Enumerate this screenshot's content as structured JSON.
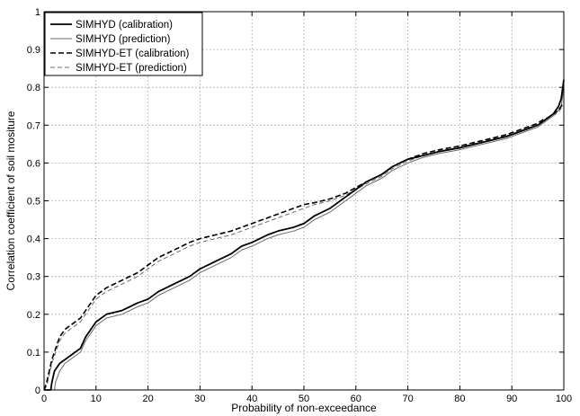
{
  "chart_data": {
    "type": "line",
    "title": "",
    "xlabel": "Probability of non-exceedance",
    "ylabel": "Correlation coefficient of soil mositure",
    "xlim": [
      0,
      100
    ],
    "ylim": [
      0,
      1
    ],
    "xticks": [
      0,
      10,
      20,
      30,
      40,
      50,
      60,
      70,
      80,
      90,
      100
    ],
    "yticks": [
      0,
      0.1,
      0.2,
      0.3,
      0.4,
      0.5,
      0.6,
      0.7,
      0.8,
      0.9,
      1
    ],
    "grid": true,
    "legend_position": "top-left",
    "series": [
      {
        "name": "SIMHYD (calibration)",
        "color": "#000000",
        "style": "solid-thick",
        "points": [
          [
            0,
            0
          ],
          [
            1.3,
            0
          ],
          [
            1.5,
            0.02
          ],
          [
            2,
            0.05
          ],
          [
            3,
            0.07
          ],
          [
            4,
            0.08
          ],
          [
            5,
            0.09
          ],
          [
            6,
            0.1
          ],
          [
            7,
            0.11
          ],
          [
            8,
            0.14
          ],
          [
            9,
            0.16
          ],
          [
            10,
            0.18
          ],
          [
            12,
            0.2
          ],
          [
            15,
            0.21
          ],
          [
            18,
            0.23
          ],
          [
            20,
            0.24
          ],
          [
            22,
            0.26
          ],
          [
            25,
            0.28
          ],
          [
            28,
            0.3
          ],
          [
            30,
            0.32
          ],
          [
            33,
            0.34
          ],
          [
            36,
            0.36
          ],
          [
            38,
            0.38
          ],
          [
            40,
            0.39
          ],
          [
            43,
            0.41
          ],
          [
            45,
            0.42
          ],
          [
            48,
            0.43
          ],
          [
            50,
            0.44
          ],
          [
            52,
            0.46
          ],
          [
            55,
            0.48
          ],
          [
            58,
            0.51
          ],
          [
            60,
            0.53
          ],
          [
            62,
            0.55
          ],
          [
            65,
            0.57
          ],
          [
            67,
            0.59
          ],
          [
            70,
            0.61
          ],
          [
            73,
            0.62
          ],
          [
            76,
            0.63
          ],
          [
            80,
            0.64
          ],
          [
            83,
            0.65
          ],
          [
            86,
            0.66
          ],
          [
            89,
            0.67
          ],
          [
            91,
            0.68
          ],
          [
            93,
            0.69
          ],
          [
            95,
            0.7
          ],
          [
            96,
            0.71
          ],
          [
            97,
            0.72
          ],
          [
            98,
            0.73
          ],
          [
            99,
            0.75
          ],
          [
            99.5,
            0.77
          ],
          [
            100,
            0.82
          ]
        ]
      },
      {
        "name": "SIMHYD (prediction)",
        "color": "#6a6a6a",
        "style": "solid-thin",
        "points": [
          [
            0,
            0
          ],
          [
            2,
            0
          ],
          [
            2.2,
            0.02
          ],
          [
            3,
            0.05
          ],
          [
            4,
            0.07
          ],
          [
            5,
            0.08
          ],
          [
            6,
            0.09
          ],
          [
            7,
            0.1
          ],
          [
            8,
            0.13
          ],
          [
            9,
            0.15
          ],
          [
            10,
            0.17
          ],
          [
            12,
            0.19
          ],
          [
            15,
            0.2
          ],
          [
            18,
            0.22
          ],
          [
            20,
            0.23
          ],
          [
            22,
            0.25
          ],
          [
            25,
            0.27
          ],
          [
            28,
            0.29
          ],
          [
            30,
            0.31
          ],
          [
            33,
            0.33
          ],
          [
            36,
            0.35
          ],
          [
            38,
            0.37
          ],
          [
            40,
            0.38
          ],
          [
            43,
            0.4
          ],
          [
            45,
            0.41
          ],
          [
            48,
            0.42
          ],
          [
            50,
            0.43
          ],
          [
            52,
            0.45
          ],
          [
            55,
            0.47
          ],
          [
            58,
            0.5
          ],
          [
            60,
            0.52
          ],
          [
            62,
            0.54
          ],
          [
            65,
            0.56
          ],
          [
            67,
            0.58
          ],
          [
            70,
            0.6
          ],
          [
            73,
            0.615
          ],
          [
            76,
            0.625
          ],
          [
            80,
            0.635
          ],
          [
            83,
            0.645
          ],
          [
            86,
            0.655
          ],
          [
            89,
            0.665
          ],
          [
            91,
            0.675
          ],
          [
            93,
            0.685
          ],
          [
            95,
            0.695
          ],
          [
            96,
            0.705
          ],
          [
            97,
            0.715
          ],
          [
            98,
            0.725
          ],
          [
            99,
            0.74
          ],
          [
            99.5,
            0.75
          ],
          [
            100,
            0.8
          ]
        ]
      },
      {
        "name": "SIMHYD-ET (calibration)",
        "color": "#000000",
        "style": "dashed-thick",
        "points": [
          [
            0,
            0
          ],
          [
            0.5,
            0.02
          ],
          [
            1,
            0.05
          ],
          [
            1.5,
            0.08
          ],
          [
            2,
            0.1
          ],
          [
            3,
            0.14
          ],
          [
            4,
            0.16
          ],
          [
            5,
            0.17
          ],
          [
            6,
            0.18
          ],
          [
            7,
            0.19
          ],
          [
            8,
            0.21
          ],
          [
            9,
            0.23
          ],
          [
            10,
            0.25
          ],
          [
            12,
            0.27
          ],
          [
            15,
            0.29
          ],
          [
            18,
            0.31
          ],
          [
            20,
            0.33
          ],
          [
            22,
            0.35
          ],
          [
            25,
            0.37
          ],
          [
            28,
            0.39
          ],
          [
            30,
            0.4
          ],
          [
            33,
            0.41
          ],
          [
            36,
            0.42
          ],
          [
            38,
            0.43
          ],
          [
            40,
            0.44
          ],
          [
            43,
            0.455
          ],
          [
            45,
            0.465
          ],
          [
            48,
            0.48
          ],
          [
            50,
            0.49
          ],
          [
            52,
            0.495
          ],
          [
            55,
            0.505
          ],
          [
            58,
            0.52
          ],
          [
            60,
            0.535
          ],
          [
            62,
            0.55
          ],
          [
            65,
            0.57
          ],
          [
            67,
            0.59
          ],
          [
            70,
            0.61
          ],
          [
            73,
            0.625
          ],
          [
            76,
            0.635
          ],
          [
            80,
            0.645
          ],
          [
            83,
            0.655
          ],
          [
            86,
            0.665
          ],
          [
            89,
            0.675
          ],
          [
            91,
            0.685
          ],
          [
            93,
            0.695
          ],
          [
            95,
            0.705
          ],
          [
            96,
            0.715
          ],
          [
            97,
            0.72
          ],
          [
            98,
            0.73
          ],
          [
            99,
            0.74
          ],
          [
            99.5,
            0.75
          ],
          [
            100,
            0.76
          ]
        ]
      },
      {
        "name": "SIMHYD-ET (prediction)",
        "color": "#6a6a6a",
        "style": "dashed-thin",
        "points": [
          [
            0,
            0
          ],
          [
            0.5,
            0.01
          ],
          [
            1,
            0.04
          ],
          [
            1.5,
            0.07
          ],
          [
            2,
            0.09
          ],
          [
            3,
            0.13
          ],
          [
            4,
            0.15
          ],
          [
            5,
            0.16
          ],
          [
            6,
            0.17
          ],
          [
            7,
            0.18
          ],
          [
            8,
            0.2
          ],
          [
            9,
            0.22
          ],
          [
            10,
            0.24
          ],
          [
            12,
            0.26
          ],
          [
            15,
            0.28
          ],
          [
            18,
            0.3
          ],
          [
            20,
            0.32
          ],
          [
            22,
            0.34
          ],
          [
            25,
            0.36
          ],
          [
            28,
            0.38
          ],
          [
            30,
            0.39
          ],
          [
            33,
            0.4
          ],
          [
            36,
            0.41
          ],
          [
            38,
            0.42
          ],
          [
            40,
            0.43
          ],
          [
            43,
            0.445
          ],
          [
            45,
            0.455
          ],
          [
            48,
            0.47
          ],
          [
            50,
            0.48
          ],
          [
            52,
            0.49
          ],
          [
            55,
            0.5
          ],
          [
            58,
            0.515
          ],
          [
            60,
            0.53
          ],
          [
            62,
            0.545
          ],
          [
            65,
            0.565
          ],
          [
            67,
            0.585
          ],
          [
            70,
            0.605
          ],
          [
            73,
            0.62
          ],
          [
            76,
            0.632
          ],
          [
            80,
            0.642
          ],
          [
            83,
            0.652
          ],
          [
            86,
            0.662
          ],
          [
            89,
            0.672
          ],
          [
            91,
            0.682
          ],
          [
            93,
            0.692
          ],
          [
            95,
            0.702
          ],
          [
            96,
            0.71
          ],
          [
            97,
            0.715
          ],
          [
            98,
            0.725
          ],
          [
            99,
            0.735
          ],
          [
            99.5,
            0.745
          ],
          [
            100,
            0.75
          ]
        ]
      }
    ]
  }
}
